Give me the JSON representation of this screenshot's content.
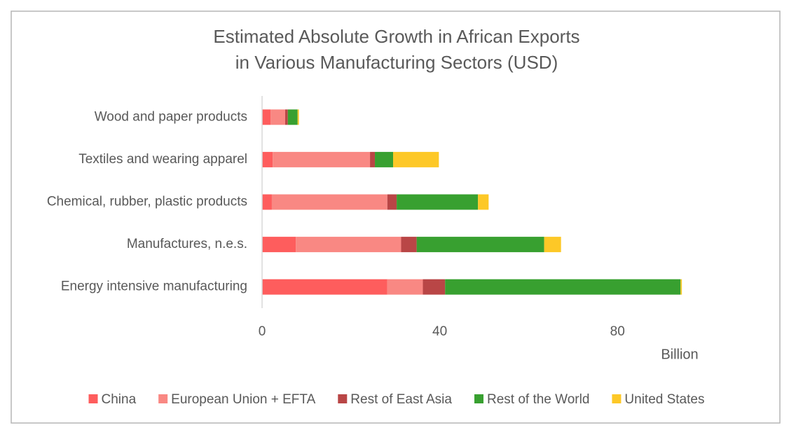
{
  "chart_data": {
    "type": "stacked-horizontal-bar",
    "title": [
      "Estimated Absolute Growth in African Exports",
      "in Various Manufacturing Sectors (USD)"
    ],
    "x_label": "Billion",
    "categories": [
      "Wood and paper products",
      "Textiles and wearing apparel",
      "Chemical, rubber, plastic products",
      "Manufactures, n.e.s.",
      "Energy intensive manufacturing"
    ],
    "series": [
      {
        "name": "China",
        "color": "#fe5d5d",
        "values": [
          1.9,
          2.4,
          2.2,
          7.6,
          28.2
        ]
      },
      {
        "name": "European Union + EFTA",
        "color": "#f98883",
        "values": [
          3.3,
          21.9,
          26,
          23.7,
          8
        ]
      },
      {
        "name": "Rest of East Asia",
        "color": "#b94646",
        "values": [
          0.6,
          1.1,
          2.1,
          3.5,
          5
        ]
      },
      {
        "name": "Rest of the World",
        "color": "#38a030",
        "values": [
          2.2,
          4.1,
          18.3,
          28.7,
          53
        ]
      },
      {
        "name": "United States",
        "color": "#fdc827",
        "values": [
          0.3,
          10.3,
          2.4,
          3.8,
          0.3
        ]
      }
    ],
    "xlim": [
      0,
      100
    ],
    "xticks": [
      0,
      40,
      80
    ],
    "grid": false,
    "legend": "bottom"
  }
}
